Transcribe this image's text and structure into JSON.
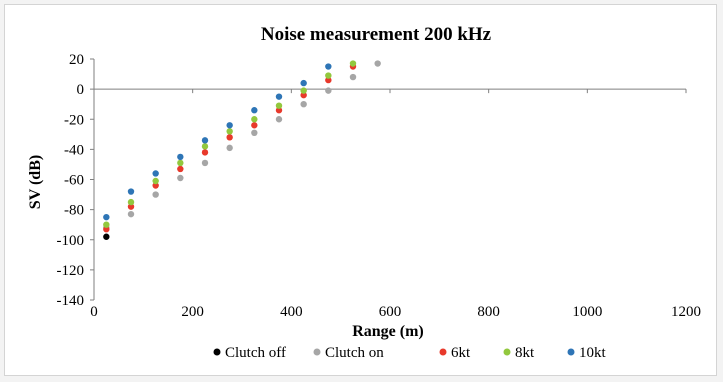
{
  "chart_data": {
    "type": "scatter",
    "title": "Noise measurement 200 kHz",
    "xlabel": "Range (m)",
    "ylabel": "SV (dB)",
    "xlim": [
      0,
      1200
    ],
    "ylim": [
      -140,
      20
    ],
    "xticks": [
      0,
      200,
      400,
      600,
      800,
      1000,
      1200
    ],
    "yticks": [
      20,
      0,
      -20,
      -40,
      -60,
      -80,
      -100,
      -120,
      -140
    ],
    "grid": false,
    "legend_position": "bottom",
    "series": [
      {
        "name": "Clutch off",
        "color": "#000000",
        "x": [
          25
        ],
        "y": [
          -98
        ]
      },
      {
        "name": "Clutch on",
        "color": "#a6a6a6",
        "x": [
          25,
          75,
          125,
          175,
          225,
          275,
          325,
          375,
          425,
          475,
          525,
          575
        ],
        "y": [
          -92,
          -83,
          -70,
          -59,
          -49,
          -39,
          -29,
          -20,
          -10,
          -1,
          8,
          17
        ]
      },
      {
        "name": "6kt",
        "color": "#e8392b",
        "x": [
          25,
          75,
          125,
          175,
          225,
          275,
          325,
          375,
          425,
          475,
          525
        ],
        "y": [
          -93,
          -78,
          -64,
          -53,
          -42,
          -32,
          -24,
          -14,
          -4,
          6,
          15
        ]
      },
      {
        "name": "8kt",
        "color": "#92c83e",
        "x": [
          25,
          75,
          125,
          175,
          225,
          275,
          325,
          375,
          425,
          475,
          525
        ],
        "y": [
          -90,
          -75,
          -61,
          -49,
          -38,
          -28,
          -20,
          -11,
          -1,
          9,
          17
        ]
      },
      {
        "name": "10kt",
        "color": "#2e75b6",
        "x": [
          25,
          75,
          125,
          175,
          225,
          275,
          325,
          375,
          425,
          475
        ],
        "y": [
          -85,
          -68,
          -56,
          -45,
          -34,
          -24,
          -14,
          -5,
          4,
          15
        ]
      }
    ]
  }
}
